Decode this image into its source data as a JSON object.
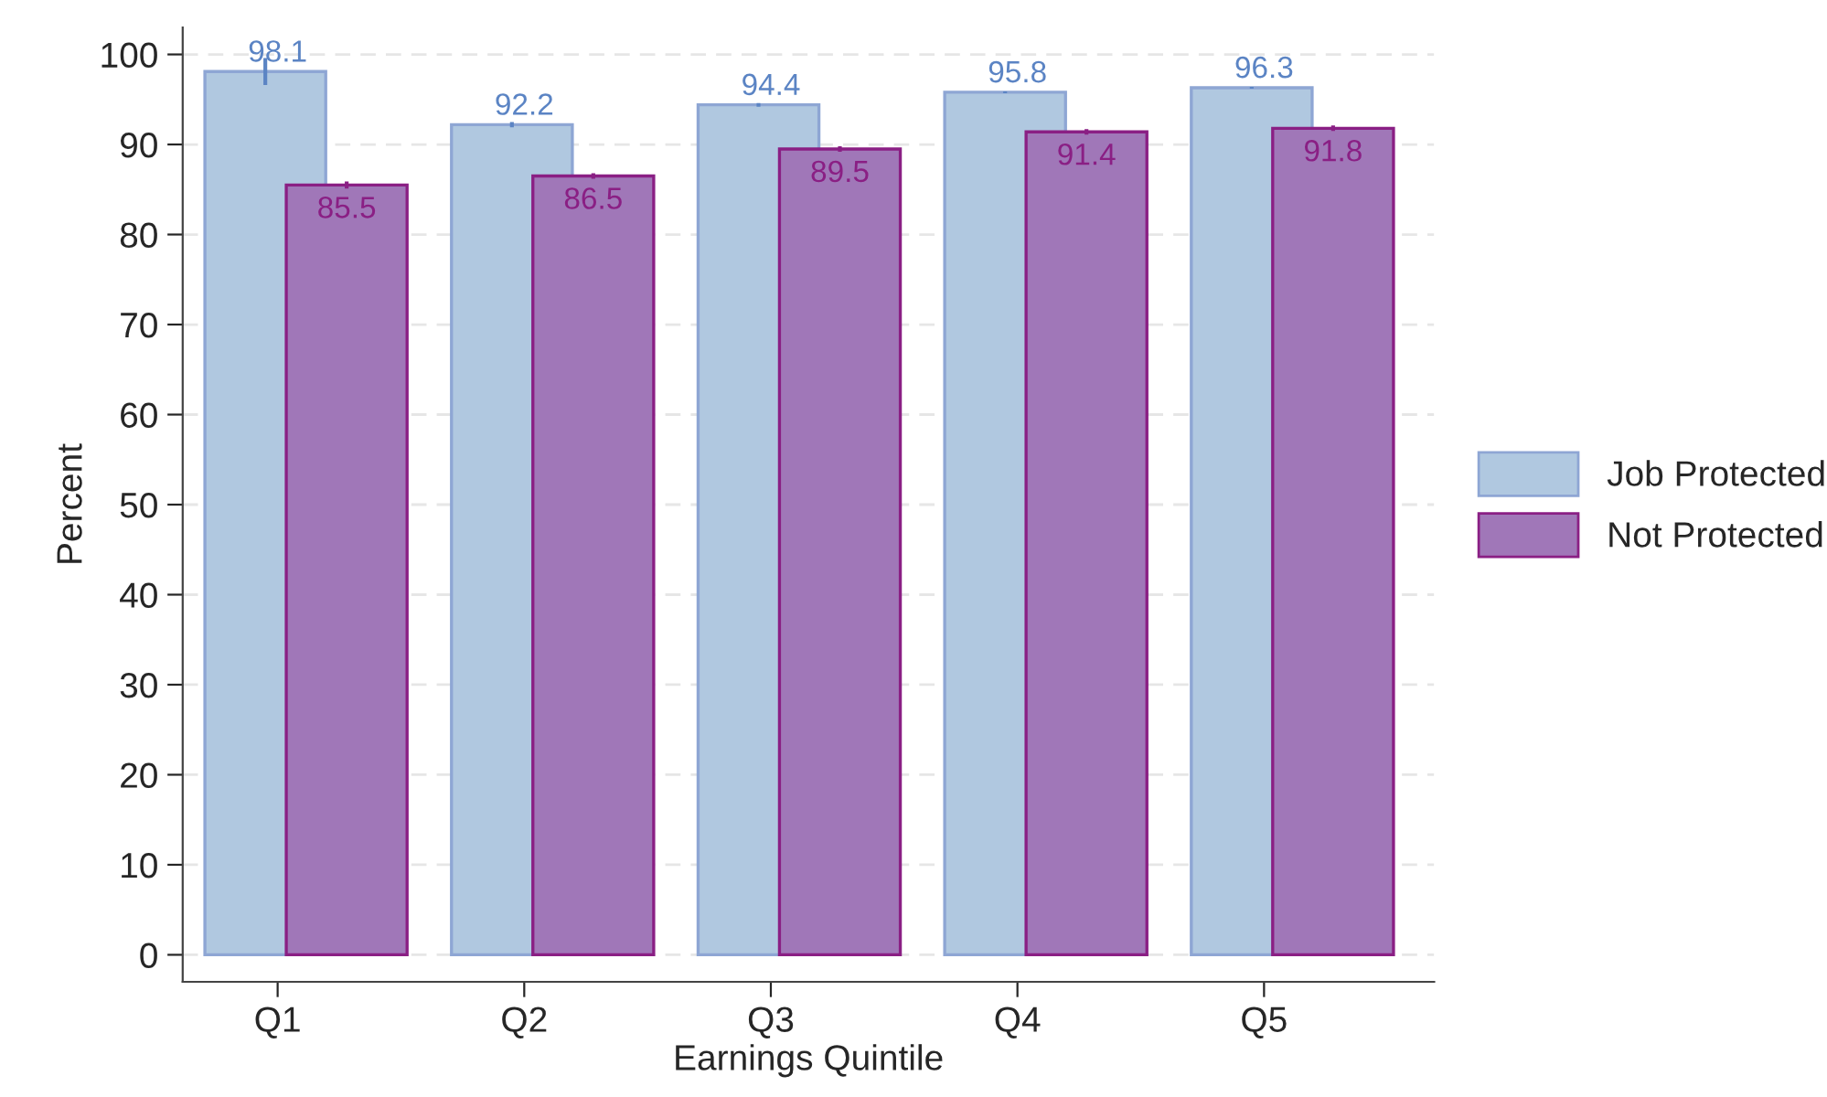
{
  "chart_data": {
    "type": "bar",
    "xlabel": "Earnings Quintile",
    "ylabel": "Percent",
    "categories": [
      "Q1",
      "Q2",
      "Q3",
      "Q4",
      "Q5"
    ],
    "series": [
      {
        "name": "Job Protected",
        "color": "#b0c8e0",
        "values": [
          98.1,
          92.2,
          94.4,
          95.8,
          96.3
        ],
        "errors": [
          1.5,
          0.3,
          0.2,
          0.1,
          0.1
        ]
      },
      {
        "name": "Not Protected",
        "color": "#a077b8",
        "values": [
          85.5,
          86.5,
          89.5,
          91.4,
          91.8
        ],
        "errors": [
          0.4,
          0.3,
          0.3,
          0.3,
          0.3
        ]
      }
    ],
    "ylim": [
      -3,
      103
    ],
    "yticks": [
      0,
      10,
      20,
      30,
      40,
      50,
      60,
      70,
      80,
      90,
      100
    ],
    "grid": "y",
    "legend": "right",
    "data_labels": true
  }
}
